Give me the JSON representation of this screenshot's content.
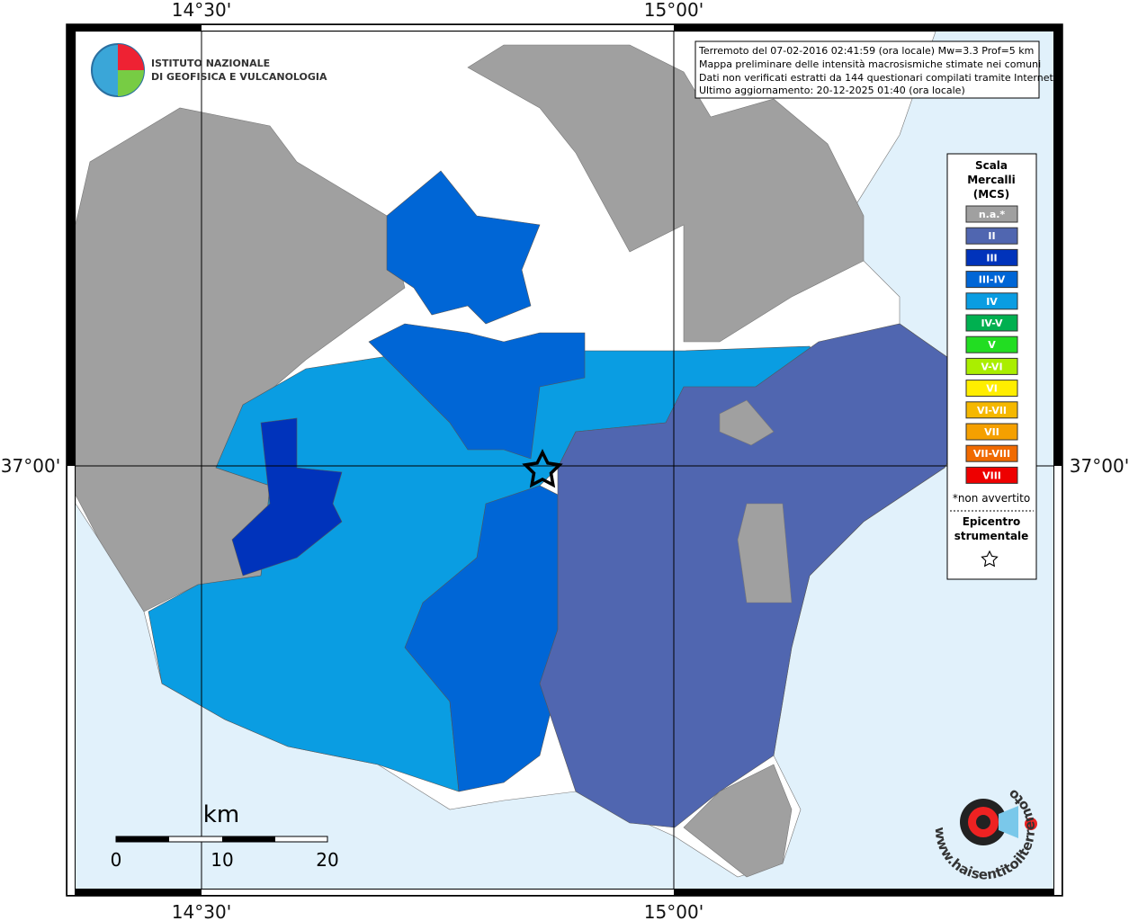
{
  "map": {
    "graticule": {
      "lon_labels": [
        "14°30'",
        "15°00'"
      ],
      "lat_labels": [
        "37°00'"
      ]
    },
    "info": [
      "Terremoto del 07-02-2016 02:41:59 (ora locale) Mw=3.3 Prof=5 km",
      "Mappa preliminare delle intensità macrosismiche stimate nei comuni",
      "Dati non verificati estratti da 144 questionari compilati tramite Internet.",
      "Ultimo aggiornamento: 20-12-2025 01:40 (ora locale)"
    ],
    "logo": [
      "ISTITUTO NAZIONALE",
      "DI GEOFISICA E VULCANOLOGIA"
    ],
    "legend": {
      "title": [
        "Scala",
        "Mercalli",
        "(MCS)"
      ],
      "items": [
        {
          "label": "n.a.*",
          "color": "#a0a0a0"
        },
        {
          "label": "II",
          "color": "#5066b0"
        },
        {
          "label": "III",
          "color": "#0033bb"
        },
        {
          "label": "III-IV",
          "color": "#0066d6"
        },
        {
          "label": "IV",
          "color": "#0a9de2"
        },
        {
          "label": "IV-V",
          "color": "#00b050"
        },
        {
          "label": "V",
          "color": "#22dd22"
        },
        {
          "label": "V-VI",
          "color": "#aaee00"
        },
        {
          "label": "VI",
          "color": "#ffee00"
        },
        {
          "label": "VI-VII",
          "color": "#f5b800"
        },
        {
          "label": "VII",
          "color": "#f5a000"
        },
        {
          "label": "VII-VIII",
          "color": "#f06a00"
        },
        {
          "label": "VIII",
          "color": "#ee0000"
        }
      ],
      "note": "*non avvertito",
      "epicenter": [
        "Epicentro",
        "strumentale"
      ]
    },
    "scalebar": {
      "unit": "km",
      "labels": [
        "0",
        "10",
        "20"
      ]
    },
    "site": "www.haisentitoilterremoto.it"
  }
}
